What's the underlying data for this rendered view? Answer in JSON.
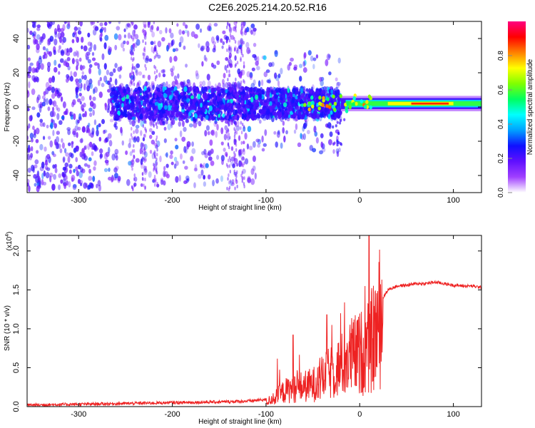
{
  "title": "C2E6.2025.214.20.52.R16",
  "chart_data": [
    {
      "type": "heatmap",
      "xlabel": "Height of straight line (km)",
      "ylabel": "Frequency (Hz)",
      "xlim": [
        -355,
        130
      ],
      "ylim": [
        -50,
        50
      ],
      "xticks": [
        -300,
        -200,
        -100,
        0,
        100
      ],
      "yticks": [
        -40,
        -20,
        0,
        20,
        40
      ],
      "colorbar": {
        "label": "Normalized spectral amplitude",
        "range": [
          0,
          1
        ],
        "ticks": [
          "0.0",
          "0.2",
          "0.4",
          "0.6",
          "0.8"
        ],
        "tick_values": [
          0,
          0.2,
          0.4,
          0.6,
          0.8
        ],
        "colors": [
          "#ffffff",
          "#a040ff",
          "#6010ff",
          "#1010ff",
          "#00a0ff",
          "#00ffff",
          "#00ff60",
          "#80ff00",
          "#ffff00",
          "#ff8000",
          "#ff0000",
          "#ff0080"
        ]
      },
      "band_center_hz": 2,
      "features": [
        {
          "x_range": [
            -355,
            -265
          ],
          "amplitude": 0.08,
          "note": "scattered noise"
        },
        {
          "x_range": [
            -265,
            -110
          ],
          "amplitude": 0.2
        },
        {
          "x_range": [
            -110,
            -20
          ],
          "amplitude": 0.35
        },
        {
          "x_range": [
            -20,
            130
          ],
          "amplitude": 0.7
        }
      ]
    },
    {
      "type": "line",
      "xlabel": "Height of straight line (km)",
      "ylabel": "SNR (10 * v/v)",
      "y_scale_label": "(x10",
      "y_scale_exp": "4",
      "y_scale_close": ")",
      "xlim": [
        -355,
        130
      ],
      "ylim": [
        0,
        2.2
      ],
      "xticks": [
        -300,
        -200,
        -100,
        0,
        100
      ],
      "yticks": [
        "0.0",
        "0.5",
        "1.0",
        "1.5",
        "2.0"
      ],
      "ytick_values": [
        0,
        0.5,
        1.0,
        1.5,
        2.0
      ],
      "color": "#ee2222",
      "series": [
        {
          "x": [
            -355,
            -300,
            -250,
            -200,
            -150,
            -120,
            -100,
            -90,
            -80,
            -70,
            -60,
            -50,
            -40,
            -30,
            -20,
            -10,
            0,
            10,
            20,
            30,
            40,
            50,
            60,
            70,
            80,
            90,
            100,
            110,
            120,
            130
          ],
          "values": [
            0.0,
            0.01,
            0.02,
            0.03,
            0.04,
            0.05,
            0.07,
            0.15,
            0.25,
            0.3,
            0.32,
            0.35,
            0.45,
            0.55,
            0.65,
            0.8,
            0.85,
            0.95,
            1.3,
            1.5,
            1.55,
            1.56,
            1.58,
            1.58,
            1.6,
            1.58,
            1.56,
            1.55,
            1.55,
            1.53
          ]
        }
      ]
    }
  ]
}
